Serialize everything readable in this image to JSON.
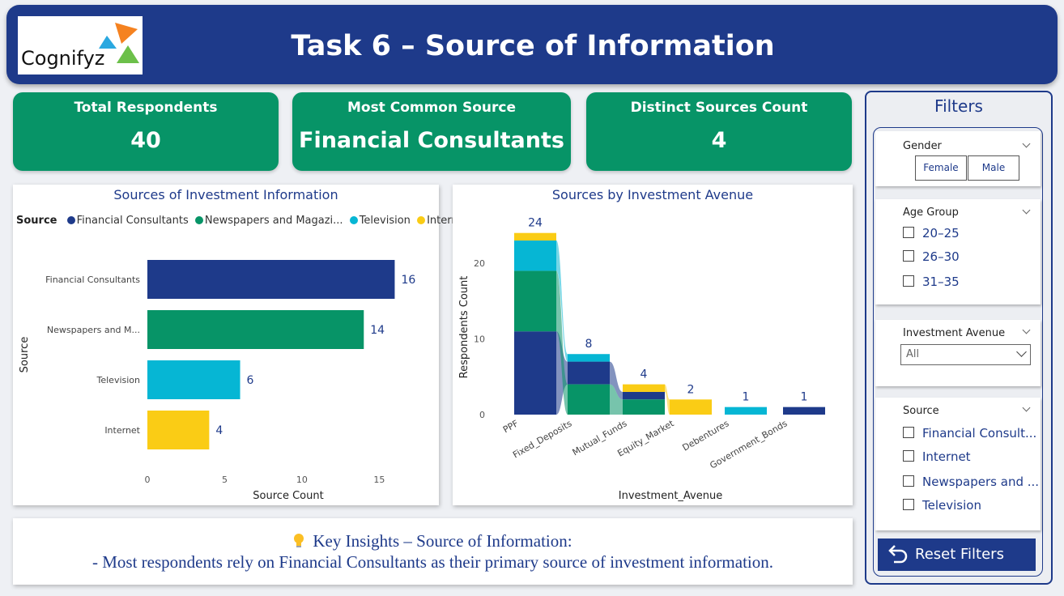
{
  "header": {
    "title": "Task 6 – Source of Information",
    "logo_text": "Cognifyz"
  },
  "kpis": [
    {
      "label": "Total Respondents",
      "value": "40"
    },
    {
      "label": "Most Common Source",
      "value": "Financial Consultants"
    },
    {
      "label": "Distinct Sources Count",
      "value": "4"
    }
  ],
  "colors": {
    "navy": "#1e3a8a",
    "green": "#079467",
    "cyan": "#06b6d4",
    "yellow": "#facc15"
  },
  "chart_data": [
    {
      "type": "bar",
      "orientation": "horizontal",
      "title": "Sources of Investment Information",
      "legend_title": "Source",
      "legend": [
        "Financial Consultants",
        "Newspapers and Magazi...",
        "Television",
        "Internet"
      ],
      "categories": [
        "Financial Consultants",
        "Newspapers and M...",
        "Television",
        "Internet"
      ],
      "values": [
        16,
        14,
        6,
        4
      ],
      "data_labels": [
        "16",
        "14",
        "6",
        "4"
      ],
      "xlabel": "Source Count",
      "ylabel": "Source",
      "xticks": [
        "0",
        "5",
        "10",
        "15"
      ],
      "xlim": [
        0,
        16.5
      ],
      "grid": false
    },
    {
      "type": "ribbon",
      "title": "Sources by Investment Avenue",
      "categories": [
        "PPF",
        "Fixed_Deposits",
        "Mutual_Funds",
        "Equity_Market",
        "Debentures",
        "Government_Bonds"
      ],
      "totals": [
        24,
        8,
        4,
        2,
        1,
        1
      ],
      "total_labels": [
        "24",
        "8",
        "4",
        "2",
        "1",
        "1"
      ],
      "series": [
        {
          "name": "Financial Consultants",
          "values": [
            11,
            3,
            1,
            0,
            0,
            1
          ]
        },
        {
          "name": "Internet",
          "values": [
            1,
            0,
            1,
            2,
            0,
            0
          ]
        },
        {
          "name": "Newspapers and Magazines",
          "values": [
            8,
            4,
            2,
            0,
            0,
            0
          ]
        },
        {
          "name": "Television",
          "values": [
            4,
            1,
            0,
            0,
            1,
            0
          ]
        }
      ],
      "xlabel": "Investment_Avenue",
      "ylabel": "Respondents Count",
      "yticks": [
        "0",
        "10",
        "20"
      ],
      "ylim": [
        0,
        26
      ]
    }
  ],
  "insights": {
    "heading": "Key Insights – Source of Information:",
    "line": "- Most respondents rely on Financial Consultants as their primary source of investment information."
  },
  "filters": {
    "title": "Filters",
    "gender": {
      "label": "Gender",
      "options": [
        "Female",
        "Male"
      ]
    },
    "age_group": {
      "label": "Age Group",
      "options": [
        "20–25",
        "26–30",
        "31–35"
      ]
    },
    "investment_avenue": {
      "label": "Investment Avenue",
      "selected": "All"
    },
    "source": {
      "label": "Source",
      "options": [
        "Financial Consult...",
        "Internet",
        "Newspapers and ...",
        "Television"
      ]
    },
    "reset_label": "Reset Filters"
  }
}
